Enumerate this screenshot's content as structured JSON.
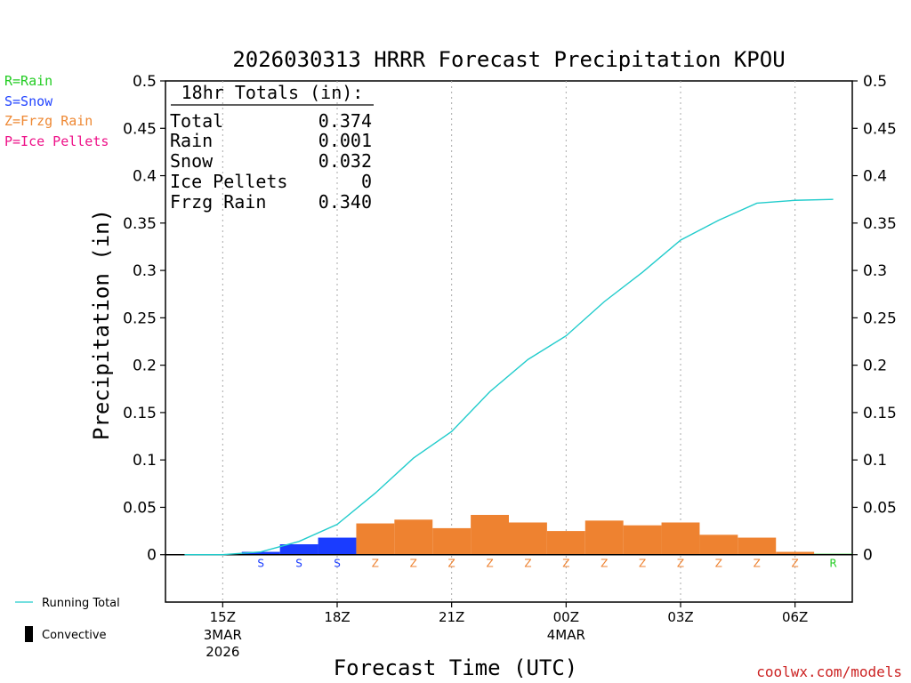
{
  "page": {
    "title": "2026030313 HRRR Forecast Precipitation KPOU",
    "watermark": "coolwx.com/models"
  },
  "legend": {
    "types": [
      {
        "text": "R=Rain",
        "color": "#22cc22"
      },
      {
        "text": "S=Snow",
        "color": "#2244ff"
      },
      {
        "text": "Z=Frzg Rain",
        "color": "#ee8833"
      },
      {
        "text": "P=Ice Pellets",
        "color": "#ee1188"
      }
    ],
    "running_total": "Running Total",
    "convective": "Convective"
  },
  "totals_box": {
    "header": "18hr Totals (in):",
    "rows": [
      {
        "label": "Total",
        "value": "0.374"
      },
      {
        "label": "Rain",
        "value": "0.001"
      },
      {
        "label": "Snow",
        "value": "0.032"
      },
      {
        "label": "Ice Pellets",
        "value": "0"
      },
      {
        "label": "Frzg Rain",
        "value": "0.340"
      }
    ]
  },
  "chart_data": {
    "type": "bar",
    "title": "2026030313 HRRR Forecast Precipitation KPOU",
    "xlabel": "Forecast Time (UTC)",
    "ylabel": "Precipitation (in)",
    "ylim": [
      -0.05,
      0.5
    ],
    "yticks": [
      "0",
      "0.05",
      "0.1",
      "0.15",
      "0.2",
      "0.25",
      "0.3",
      "0.35",
      "0.4",
      "0.45",
      "0.5"
    ],
    "xlim_hours": [
      13.5,
      31.5
    ],
    "xticks": [
      {
        "hour": 15,
        "label": "15Z",
        "sub": [
          "3MAR",
          "2026"
        ]
      },
      {
        "hour": 18,
        "label": "18Z",
        "sub": []
      },
      {
        "hour": 21,
        "label": "21Z",
        "sub": []
      },
      {
        "hour": 24,
        "label": "00Z",
        "sub": [
          "4MAR"
        ]
      },
      {
        "hour": 27,
        "label": "03Z",
        "sub": []
      },
      {
        "hour": 30,
        "label": "06Z",
        "sub": []
      }
    ],
    "hours": [
      14,
      15,
      16,
      17,
      18,
      19,
      20,
      21,
      22,
      23,
      24,
      25,
      26,
      27,
      28,
      29,
      30,
      31
    ],
    "hourly_precip": [
      0.0,
      0.0,
      0.003,
      0.011,
      0.018,
      0.033,
      0.037,
      0.028,
      0.042,
      0.034,
      0.025,
      0.036,
      0.031,
      0.034,
      0.021,
      0.018,
      0.003,
      0.001
    ],
    "precip_type": [
      "",
      "",
      "S",
      "S",
      "S",
      "Z",
      "Z",
      "Z",
      "Z",
      "Z",
      "Z",
      "Z",
      "Z",
      "Z",
      "Z",
      "Z",
      "Z",
      "R"
    ],
    "running_total": [
      0.0,
      0.0,
      0.003,
      0.014,
      0.032,
      0.065,
      0.102,
      0.13,
      0.172,
      0.206,
      0.231,
      0.267,
      0.298,
      0.332,
      0.353,
      0.371,
      0.374,
      0.375
    ],
    "type_colors": {
      "S": "#1a3cff",
      "Z": "#ee8230",
      "R": "#22cc22",
      "P": "#ee1188"
    },
    "line_color": "#22cccc"
  }
}
